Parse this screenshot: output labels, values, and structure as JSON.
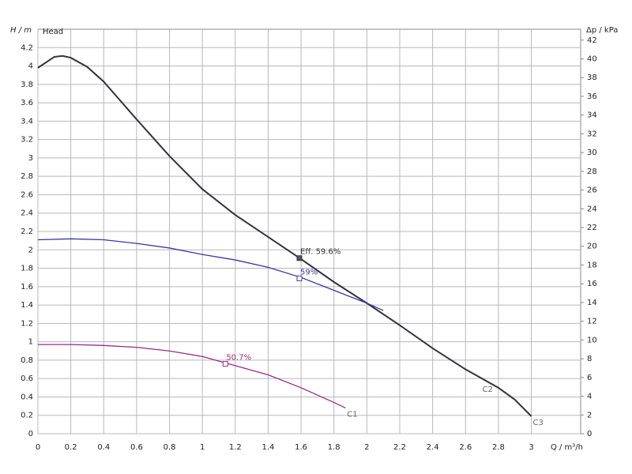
{
  "chart_data": {
    "type": "line",
    "y_axis_label": "H / m",
    "y2_axis_label": "Δp / kPa",
    "x_axis_label": "Q / m³/h",
    "annotation": "Head",
    "xlim": [
      0,
      3.3
    ],
    "xticks": [
      0,
      0.2,
      0.4,
      0.6,
      0.8,
      1,
      1.2,
      1.4,
      1.6,
      1.8,
      2,
      2.2,
      2.4,
      2.6,
      2.8,
      3
    ],
    "ylim": [
      0,
      4.4
    ],
    "yticks": [
      0,
      0.2,
      0.4,
      0.6,
      0.8,
      1,
      1.2,
      1.4,
      1.6,
      1.8,
      2,
      2.2,
      2.4,
      2.6,
      2.8,
      3,
      3.2,
      3.4,
      3.6,
      3.8,
      4,
      4.2
    ],
    "y2lim": [
      0,
      43.16
    ],
    "y2ticks": [
      0,
      2,
      4,
      6,
      8,
      10,
      12,
      14,
      16,
      18,
      20,
      22,
      24,
      26,
      28,
      30,
      32,
      34,
      36,
      38,
      40,
      42
    ],
    "grid": true,
    "series": [
      {
        "name": "C3",
        "color": "#33333d",
        "x": [
          0,
          0.1,
          0.15,
          0.2,
          0.3,
          0.4,
          0.6,
          0.8,
          1.0,
          1.2,
          1.4,
          1.6,
          1.8,
          2.0,
          2.2,
          2.4,
          2.6,
          2.8,
          2.9,
          3.0
        ],
        "values": [
          3.98,
          4.1,
          4.11,
          4.09,
          3.99,
          3.83,
          3.42,
          3.02,
          2.66,
          2.38,
          2.14,
          1.9,
          1.65,
          1.42,
          1.18,
          0.93,
          0.7,
          0.5,
          0.37,
          0.19
        ]
      },
      {
        "name": "C2",
        "color": "#3a34a8",
        "x": [
          0,
          0.2,
          0.4,
          0.6,
          0.8,
          1.0,
          1.2,
          1.4,
          1.6,
          1.8,
          2.0,
          2.1
        ],
        "values": [
          2.11,
          2.12,
          2.11,
          2.07,
          2.02,
          1.95,
          1.89,
          1.81,
          1.7,
          1.56,
          1.42,
          1.34
        ]
      },
      {
        "name": "C1",
        "color": "#9a2a8c",
        "x": [
          0,
          0.2,
          0.4,
          0.6,
          0.8,
          1.0,
          1.2,
          1.4,
          1.6,
          1.8,
          1.87
        ],
        "values": [
          0.97,
          0.97,
          0.96,
          0.94,
          0.9,
          0.84,
          0.74,
          0.64,
          0.5,
          0.34,
          0.28
        ]
      }
    ],
    "markers": [
      {
        "label": "Eff.  59.6%",
        "x": 1.59,
        "y": 1.91,
        "color": "#33333d"
      },
      {
        "label": "59%",
        "x": 1.59,
        "y": 1.69,
        "color": "#3a34a8"
      },
      {
        "label": "50.7%",
        "x": 1.14,
        "y": 0.76,
        "color": "#9a2a8c"
      }
    ]
  }
}
